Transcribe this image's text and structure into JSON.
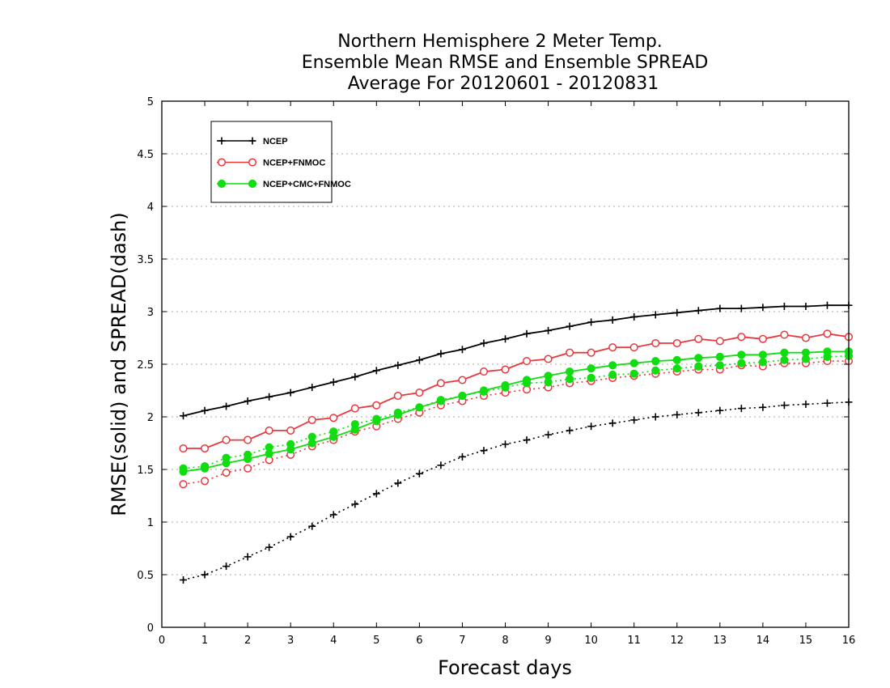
{
  "chart_data": {
    "type": "line",
    "title": [
      "Northern Hemisphere 2 Meter Temp.",
      "Ensemble Mean RMSE and Ensemble SPREAD",
      "Average For 20120601 - 20120831"
    ],
    "xlabel": "Forecast days",
    "ylabel": "RMSE(solid) and SPREAD(dash)",
    "xlim": [
      0,
      16
    ],
    "ylim": [
      0,
      5
    ],
    "xticks": [
      "0",
      "1",
      "2",
      "3",
      "4",
      "5",
      "6",
      "7",
      "8",
      "9",
      "10",
      "11",
      "12",
      "13",
      "14",
      "15",
      "16"
    ],
    "yticks": [
      "0",
      "0.5",
      "1",
      "1.5",
      "2",
      "2.5",
      "3",
      "3.5",
      "4",
      "4.5",
      "5"
    ],
    "grid": "horizontal dotted",
    "legend_position": "top-left",
    "x": [
      0.5,
      1,
      1.5,
      2,
      2.5,
      3,
      3.5,
      4,
      4.5,
      5,
      5.5,
      6,
      6.5,
      7,
      7.5,
      8,
      8.5,
      9,
      9.5,
      10,
      10.5,
      11,
      11.5,
      12,
      12.5,
      13,
      13.5,
      14,
      14.5,
      15,
      15.5,
      16
    ],
    "series": [
      {
        "name": "NCEP",
        "color": "#000000",
        "marker": "plus",
        "rmse": [
          2.01,
          2.06,
          2.1,
          2.15,
          2.19,
          2.23,
          2.28,
          2.33,
          2.38,
          2.44,
          2.49,
          2.54,
          2.6,
          2.64,
          2.7,
          2.74,
          2.79,
          2.82,
          2.86,
          2.9,
          2.92,
          2.95,
          2.97,
          2.99,
          3.01,
          3.03,
          3.03,
          3.04,
          3.05,
          3.05,
          3.06,
          3.06
        ],
        "spread": [
          0.45,
          0.5,
          0.58,
          0.67,
          0.76,
          0.86,
          0.96,
          1.07,
          1.17,
          1.27,
          1.37,
          1.46,
          1.54,
          1.62,
          1.68,
          1.74,
          1.78,
          1.83,
          1.87,
          1.91,
          1.94,
          1.97,
          2.0,
          2.02,
          2.04,
          2.06,
          2.08,
          2.09,
          2.11,
          2.12,
          2.13,
          2.14
        ]
      },
      {
        "name": "NCEP+FNMOC",
        "color": "#e8383d",
        "marker": "open-circle",
        "rmse": [
          1.7,
          1.7,
          1.78,
          1.78,
          1.87,
          1.87,
          1.97,
          1.99,
          2.08,
          2.11,
          2.2,
          2.23,
          2.32,
          2.35,
          2.43,
          2.45,
          2.53,
          2.55,
          2.61,
          2.61,
          2.66,
          2.66,
          2.7,
          2.7,
          2.74,
          2.72,
          2.76,
          2.74,
          2.78,
          2.75,
          2.79,
          2.76
        ],
        "spread": [
          1.36,
          1.39,
          1.47,
          1.51,
          1.59,
          1.64,
          1.72,
          1.78,
          1.86,
          1.91,
          1.98,
          2.04,
          2.11,
          2.15,
          2.2,
          2.23,
          2.26,
          2.28,
          2.32,
          2.34,
          2.37,
          2.39,
          2.41,
          2.43,
          2.45,
          2.45,
          2.49,
          2.48,
          2.51,
          2.51,
          2.53,
          2.53
        ]
      },
      {
        "name": "NCEP+CMC+FNMOC",
        "color": "#11dd11",
        "marker": "filled-circle",
        "rmse": [
          1.48,
          1.51,
          1.56,
          1.6,
          1.65,
          1.69,
          1.75,
          1.81,
          1.88,
          1.96,
          2.02,
          2.09,
          2.15,
          2.2,
          2.25,
          2.3,
          2.35,
          2.39,
          2.43,
          2.46,
          2.49,
          2.51,
          2.53,
          2.54,
          2.56,
          2.57,
          2.59,
          2.59,
          2.61,
          2.61,
          2.62,
          2.62
        ],
        "spread": [
          1.51,
          1.53,
          1.61,
          1.64,
          1.71,
          1.74,
          1.81,
          1.86,
          1.93,
          1.98,
          2.04,
          2.09,
          2.16,
          2.2,
          2.24,
          2.28,
          2.32,
          2.33,
          2.36,
          2.37,
          2.4,
          2.41,
          2.44,
          2.46,
          2.48,
          2.49,
          2.51,
          2.52,
          2.54,
          2.55,
          2.57,
          2.58
        ]
      }
    ]
  }
}
